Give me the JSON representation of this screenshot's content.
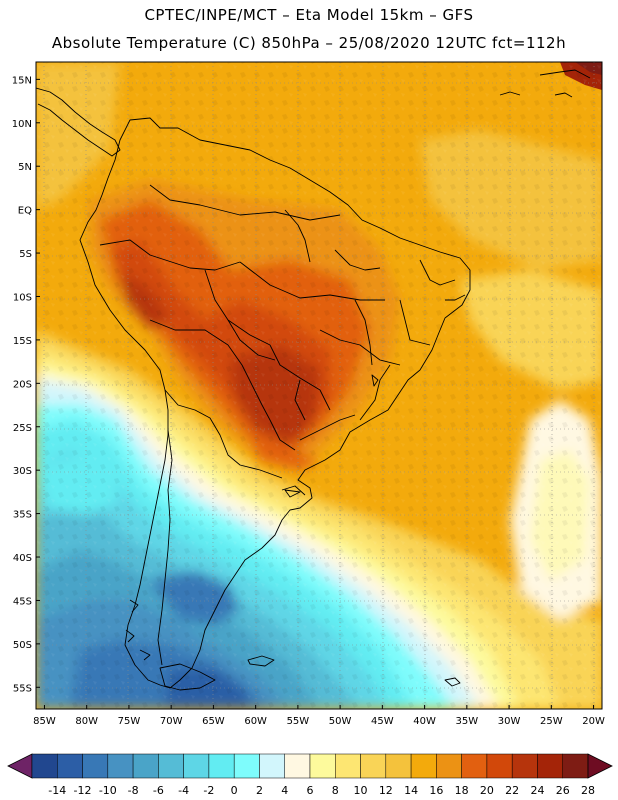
{
  "header": {
    "line1": "CPTEC/INPE/MCT –  Eta Model 15km – GFS",
    "line2": "Absolute Temperature (C) 850hPa – 25/08/2020 12UTC fct=112h"
  },
  "map": {
    "lon_range": [
      -86,
      -19
    ],
    "lat_range": [
      17,
      -57.5
    ],
    "lat_labels": [
      {
        "lat": 15,
        "text": "15N"
      },
      {
        "lat": 10,
        "text": "10N"
      },
      {
        "lat": 5,
        "text": "5N"
      },
      {
        "lat": 0,
        "text": "EQ"
      },
      {
        "lat": -5,
        "text": "5S"
      },
      {
        "lat": -10,
        "text": "10S"
      },
      {
        "lat": -15,
        "text": "15S"
      },
      {
        "lat": -20,
        "text": "20S"
      },
      {
        "lat": -25,
        "text": "25S"
      },
      {
        "lat": -30,
        "text": "30S"
      },
      {
        "lat": -35,
        "text": "35S"
      },
      {
        "lat": -40,
        "text": "40S"
      },
      {
        "lat": -45,
        "text": "45S"
      },
      {
        "lat": -50,
        "text": "50S"
      },
      {
        "lat": -55,
        "text": "55S"
      }
    ],
    "lon_labels": [
      {
        "lon": -85,
        "text": "85W"
      },
      {
        "lon": -80,
        "text": "80W"
      },
      {
        "lon": -75,
        "text": "75W"
      },
      {
        "lon": -70,
        "text": "70W"
      },
      {
        "lon": -65,
        "text": "65W"
      },
      {
        "lon": -60,
        "text": "60W"
      },
      {
        "lon": -55,
        "text": "55W"
      },
      {
        "lon": -50,
        "text": "50W"
      },
      {
        "lon": -45,
        "text": "45W"
      },
      {
        "lon": -40,
        "text": "40W"
      },
      {
        "lon": -35,
        "text": "35W"
      },
      {
        "lon": -30,
        "text": "30W"
      },
      {
        "lon": -25,
        "text": "25W"
      },
      {
        "lon": -20,
        "text": "20W"
      }
    ]
  },
  "colorbar": {
    "labels": [
      "-14",
      "-12",
      "-10",
      "-8",
      "-6",
      "-4",
      "-2",
      "0",
      "2",
      "4",
      "6",
      "8",
      "10",
      "12",
      "14",
      "16",
      "18",
      "20",
      "22",
      "24",
      "26",
      "28"
    ],
    "colors": [
      "#6e2366",
      "#21478f",
      "#2c5ea6",
      "#3878b6",
      "#4792c2",
      "#4aa4c8",
      "#55bcd6",
      "#5ed6e6",
      "#62ecf2",
      "#7efcfc",
      "#d2f6fc",
      "#fff8e2",
      "#fdfa9c",
      "#fde672",
      "#f9d457",
      "#f4c23c",
      "#f3aa0c",
      "#ec9214",
      "#e26010",
      "#d2480a",
      "#b6340c",
      "#a42408",
      "#7e1c14",
      "#6e0c22"
    ]
  }
}
